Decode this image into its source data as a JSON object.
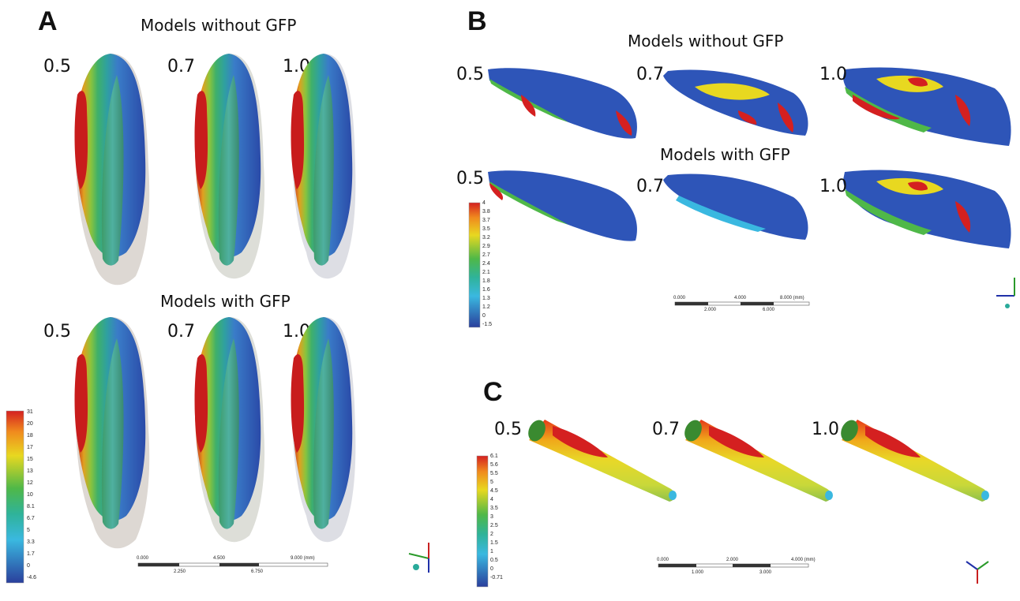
{
  "panel_a": {
    "letter": "A",
    "title_top": "Models without GFP",
    "title_bottom": "Models with GFP",
    "values_top": [
      "0.5",
      "0.7",
      "1.0"
    ],
    "values_bottom": [
      "0.5",
      "0.7",
      "1.0"
    ],
    "legend": [
      "31",
      "20",
      "18",
      "17",
      "15",
      "13",
      "12",
      "10",
      "8.1",
      "6.7",
      "5",
      "3.3",
      "1.7",
      "0",
      "-4.6"
    ],
    "scale_top": [
      "0.000",
      "4.500",
      "9.000 (mm)"
    ],
    "scale_bottom": [
      "2.250",
      "6.750"
    ]
  },
  "panel_b": {
    "letter": "B",
    "title_top": "Models without GFP",
    "title_bottom": "Models with GFP",
    "values_top": [
      "0.5",
      "0.7",
      "1.0"
    ],
    "values_bottom": [
      "0.5",
      "0.7",
      "1.0"
    ],
    "legend": [
      "4",
      "3.8",
      "3.7",
      "3.5",
      "3.2",
      "2.9",
      "2.7",
      "2.4",
      "2.1",
      "1.8",
      "1.6",
      "1.3",
      "1.2",
      "0",
      "-1.5"
    ],
    "scale_top": [
      "0.000",
      "4.000",
      "8.000 (mm)"
    ],
    "scale_bottom": [
      "2.000",
      "6.000"
    ]
  },
  "panel_c": {
    "letter": "C",
    "values": [
      "0.5",
      "0.7",
      "1.0"
    ],
    "legend": [
      "6.1",
      "5.6",
      "5.5",
      "5",
      "4.5",
      "4",
      "3.5",
      "3",
      "2.5",
      "2",
      "1.5",
      "1",
      "0.5",
      "0",
      "-0.71"
    ],
    "scale_top": [
      "0.000",
      "2.000",
      "4.000 (mm)"
    ],
    "scale_bottom": [
      "1.000",
      "3.000"
    ]
  },
  "colors": {
    "red": "#d42020",
    "orange": "#f08a1e",
    "yellow": "#e8d820",
    "green": "#4fb848",
    "teal": "#2fb39a",
    "cyan": "#3ab8e0",
    "blue": "#2e55b8",
    "darkblue": "#2a3f9c"
  }
}
